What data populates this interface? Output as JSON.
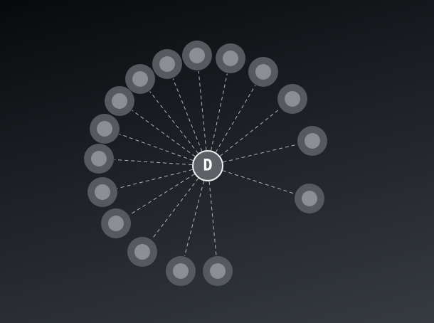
{
  "hub": {
    "label": "D",
    "fill": "#5d6064",
    "stroke": "#f2f3f4"
  },
  "satellites": [
    {
      "id": "node-1"
    },
    {
      "id": "node-2"
    },
    {
      "id": "node-3"
    },
    {
      "id": "node-4"
    },
    {
      "id": "node-5"
    },
    {
      "id": "node-6"
    },
    {
      "id": "node-7"
    },
    {
      "id": "node-8"
    },
    {
      "id": "node-9"
    },
    {
      "id": "node-10"
    },
    {
      "id": "node-11"
    },
    {
      "id": "node-12"
    },
    {
      "id": "node-13"
    },
    {
      "id": "node-14"
    },
    {
      "id": "node-15"
    },
    {
      "id": "node-16"
    }
  ],
  "colors": {
    "satellite_outer": "#56595d",
    "satellite_inner": "#8b8e92",
    "spoke": "#c9ccd0"
  }
}
